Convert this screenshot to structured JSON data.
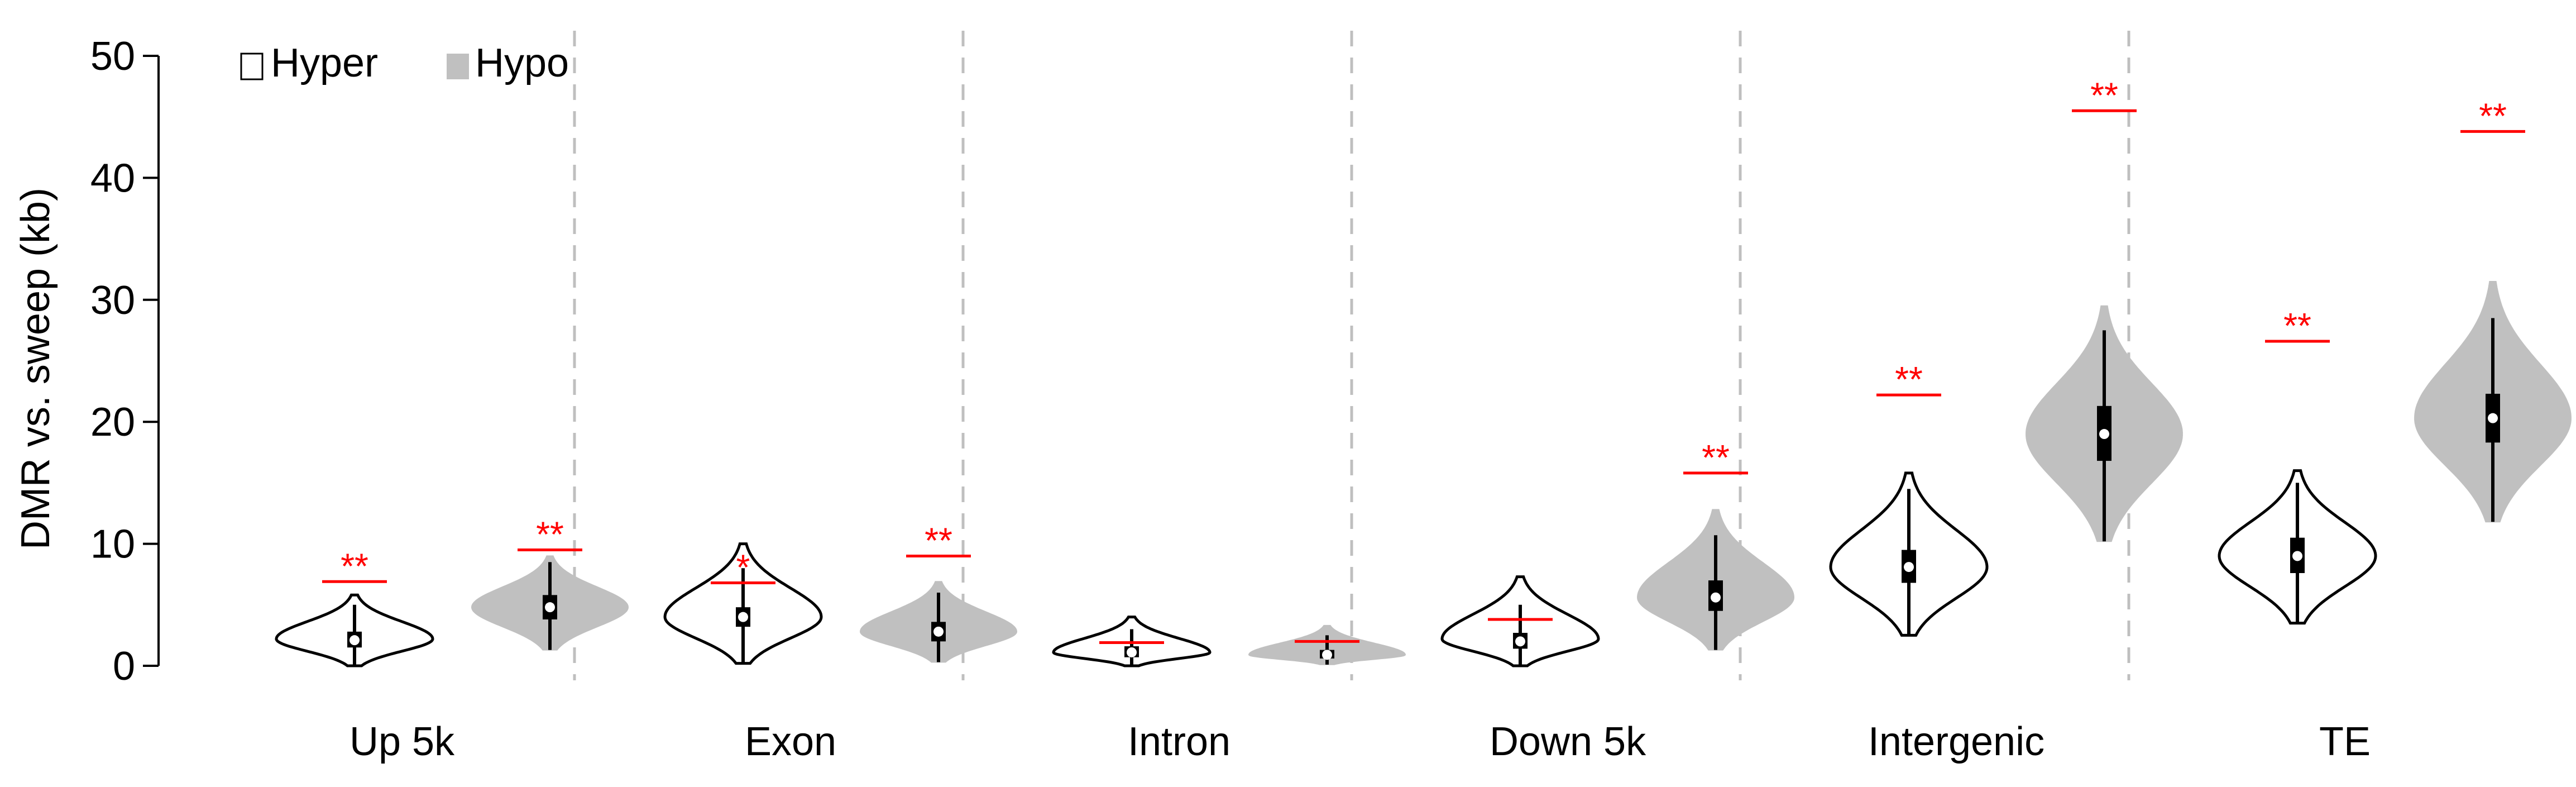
{
  "chart_data": {
    "type": "violin",
    "ylabel": "DMR vs. sweep (kb)",
    "ylim": [
      0,
      50
    ],
    "yticks": [
      0,
      10,
      20,
      30,
      40,
      50
    ],
    "grid": false,
    "legend_position": "top-left",
    "legend": [
      {
        "name": "Hyper",
        "fill": "#ffffff",
        "stroke": "#000000"
      },
      {
        "name": "Hypo",
        "fill": "#c0c0c0",
        "stroke": "#c0c0c0"
      }
    ],
    "colors": {
      "hyper_fill": "#ffffff",
      "hypo_fill": "#c0c0c0",
      "significance": "#ff0000",
      "separator": "#bfbfbf",
      "box": "#000000"
    },
    "categories": [
      "Up 5k",
      "Exon",
      "Intron",
      "Down 5k",
      "Intergenic",
      "TE"
    ],
    "groups": [
      {
        "category": "Up 5k",
        "hyper": {
          "min": 0,
          "whisker_low": 0,
          "q1": 1.5,
          "median": 2.1,
          "q3": 2.8,
          "whisker_high": 5,
          "max": 5.8,
          "mode": 2.2,
          "observed": 6.9,
          "sig": "**"
        },
        "hypo": {
          "min": 1.3,
          "whisker_low": 1.3,
          "q1": 3.8,
          "median": 4.8,
          "q3": 5.8,
          "whisker_high": 8.5,
          "max": 9,
          "mode": 4.8,
          "observed": 9.5,
          "sig": "**"
        }
      },
      {
        "category": "Exon",
        "hyper": {
          "min": 0.2,
          "whisker_low": 0.2,
          "q1": 3.2,
          "median": 4,
          "q3": 4.8,
          "whisker_high": 8,
          "max": 10,
          "mode": 4,
          "observed": 6.8,
          "sig": "*"
        },
        "hypo": {
          "min": 0.3,
          "whisker_low": 0.3,
          "q1": 2,
          "median": 2.8,
          "q3": 3.6,
          "whisker_high": 6,
          "max": 6.9,
          "mode": 2.8,
          "observed": 9,
          "sig": "**"
        }
      },
      {
        "category": "Intron",
        "hyper": {
          "min": 0,
          "whisker_low": 0,
          "q1": 0.7,
          "median": 1.1,
          "q3": 1.6,
          "whisker_high": 3,
          "max": 4,
          "mode": 1.1,
          "observed": 1.9,
          "sig": ""
        },
        "hypo": {
          "min": 0.1,
          "whisker_low": 0.1,
          "q1": 0.6,
          "median": 0.9,
          "q3": 1.3,
          "whisker_high": 2.5,
          "max": 3.3,
          "mode": 0.9,
          "observed": 2,
          "sig": ""
        }
      },
      {
        "category": "Down 5k",
        "hyper": {
          "min": 0,
          "whisker_low": 0,
          "q1": 1.4,
          "median": 2,
          "q3": 2.7,
          "whisker_high": 5,
          "max": 7.3,
          "mode": 2.2,
          "observed": 3.8,
          "sig": ""
        },
        "hypo": {
          "min": 1.3,
          "whisker_low": 1.3,
          "q1": 4.5,
          "median": 5.6,
          "q3": 7,
          "whisker_high": 10.7,
          "max": 12.8,
          "mode": 5.6,
          "observed": 15.8,
          "sig": "**"
        }
      },
      {
        "category": "Intergenic",
        "hyper": {
          "min": 2.5,
          "whisker_low": 2.5,
          "q1": 6.8,
          "median": 8.1,
          "q3": 9.5,
          "whisker_high": 14.5,
          "max": 15.8,
          "mode": 8.1,
          "observed": 22.2,
          "sig": "**"
        },
        "hypo": {
          "min": 10.2,
          "whisker_low": 10.2,
          "q1": 16.8,
          "median": 19,
          "q3": 21.3,
          "whisker_high": 27.5,
          "max": 29.5,
          "mode": 19,
          "observed": 45.5,
          "sig": "**"
        }
      },
      {
        "category": "TE",
        "hyper": {
          "min": 3.5,
          "whisker_low": 3.5,
          "q1": 7.6,
          "median": 9,
          "q3": 10.5,
          "whisker_high": 15,
          "max": 16,
          "mode": 9,
          "observed": 26.6,
          "sig": "**"
        },
        "hypo": {
          "min": 11.8,
          "whisker_low": 11.8,
          "q1": 18.3,
          "median": 20.3,
          "q3": 22.3,
          "whisker_high": 28.5,
          "max": 31.5,
          "mode": 20.3,
          "observed": 43.8,
          "sig": "**"
        }
      }
    ]
  }
}
